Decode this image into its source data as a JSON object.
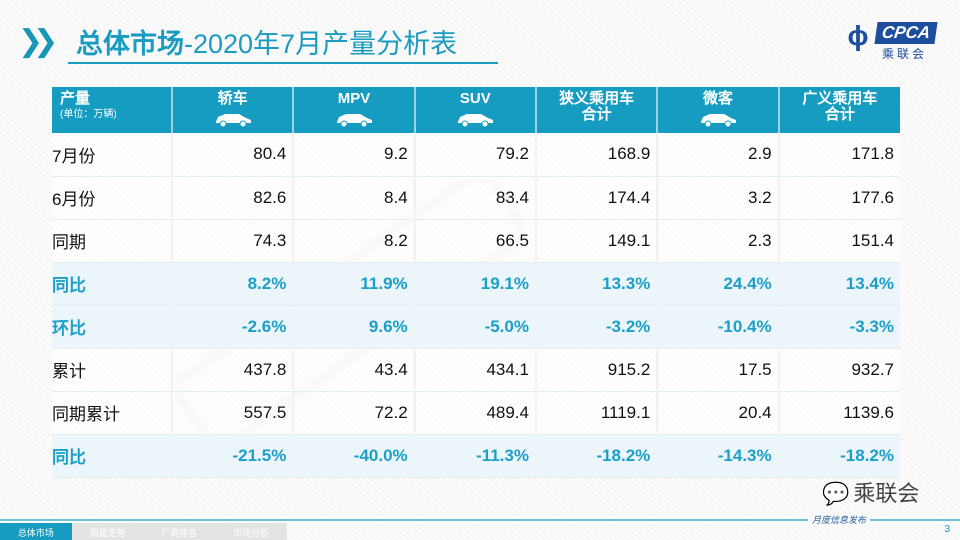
{
  "title": {
    "bold": "总体市场",
    "rest": "-2020年7月产量分析表"
  },
  "logo": {
    "text": "CPCA",
    "cn": "乘联会"
  },
  "table": {
    "header": {
      "label": "产量",
      "unit": "(单位：万辆)",
      "columns": [
        {
          "label": "轿车",
          "icon": "sedan-icon"
        },
        {
          "label": "MPV",
          "icon": "mpv-icon"
        },
        {
          "label": "SUV",
          "icon": "suv-icon"
        },
        {
          "label": "狭义乘用车",
          "label2": "合计"
        },
        {
          "label": "微客",
          "icon": "minivan-icon"
        },
        {
          "label": "广义乘用车",
          "label2": "合计"
        }
      ]
    },
    "rows": [
      {
        "label": "7月份",
        "values": [
          "80.4",
          "9.2",
          "79.2",
          "168.9",
          "2.9",
          "171.8"
        ],
        "highlight": false
      },
      {
        "label": "6月份",
        "values": [
          "82.6",
          "8.4",
          "83.4",
          "174.4",
          "3.2",
          "177.6"
        ],
        "highlight": false
      },
      {
        "label": "同期",
        "values": [
          "74.3",
          "8.2",
          "66.5",
          "149.1",
          "2.3",
          "151.4"
        ],
        "highlight": false
      },
      {
        "label": "同比",
        "values": [
          "8.2%",
          "11.9%",
          "19.1%",
          "13.3%",
          "24.4%",
          "13.4%"
        ],
        "highlight": true
      },
      {
        "label": "环比",
        "values": [
          "-2.6%",
          "9.6%",
          "-5.0%",
          "-3.2%",
          "-10.4%",
          "-3.3%"
        ],
        "highlight": true
      },
      {
        "label": "累计",
        "values": [
          "437.8",
          "43.4",
          "434.1",
          "915.2",
          "17.5",
          "932.7"
        ],
        "highlight": false
      },
      {
        "label": "同期累计",
        "values": [
          "557.5",
          "72.2",
          "489.4",
          "1119.1",
          "20.4",
          "1139.6"
        ],
        "highlight": false
      },
      {
        "label": "同比",
        "values": [
          "-21.5%",
          "-40.0%",
          "-11.3%",
          "-18.2%",
          "-14.3%",
          "-18.2%"
        ],
        "highlight": true
      }
    ]
  },
  "watermark": "CPCA乘联会",
  "wechat": "乘联会",
  "footer": {
    "tabs": [
      "总体市场",
      "销量走势",
      "厂商排名",
      "市场分析"
    ],
    "monthly": "月度信息发布",
    "page": "3"
  }
}
